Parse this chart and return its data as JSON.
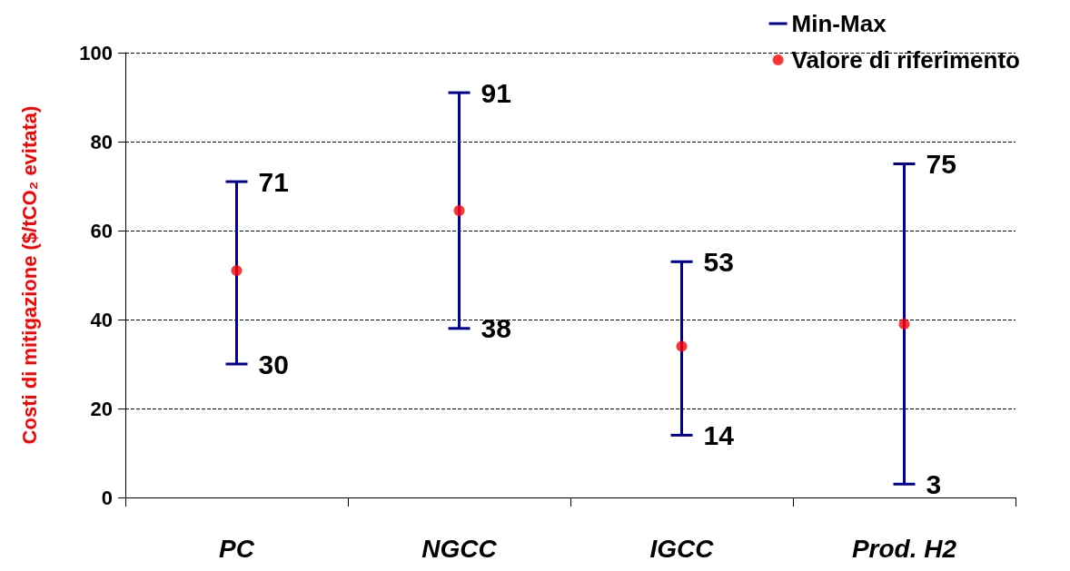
{
  "chart_data": {
    "type": "scatter",
    "ylabel": "Costi di mitigazione ($/tCO₂ evitata)",
    "categories": [
      "PC",
      "NGCC",
      "IGCC",
      "Prod. H2"
    ],
    "series": [
      {
        "name": "Min-Max",
        "color": "#000099",
        "values": [
          null,
          null,
          null,
          null
        ]
      },
      {
        "name": "Valore di riferimento",
        "color": "#ff0000",
        "values": [
          51,
          64.5,
          34,
          39
        ],
        "errors": [
          [
            30,
            71
          ],
          [
            38,
            91
          ],
          [
            14,
            53
          ],
          [
            3,
            75
          ]
        ]
      }
    ],
    "ylim": [
      0,
      100
    ],
    "yticks": [
      0,
      20,
      40,
      60,
      80,
      100
    ],
    "grid": "y",
    "legend": "top right",
    "marker": "circle",
    "annotations": [
      {
        "text": "71",
        "x": "PC",
        "y": 71
      },
      {
        "text": "30",
        "x": "PC",
        "y": 30
      },
      {
        "text": "91",
        "x": "NGCC",
        "y": 91
      },
      {
        "text": "38",
        "x": "NGCC",
        "y": 38
      },
      {
        "text": "53",
        "x": "IGCC",
        "y": 53
      },
      {
        "text": "14",
        "x": "IGCC",
        "y": 14
      },
      {
        "text": "75",
        "x": "Prod. H2",
        "y": 75
      },
      {
        "text": "3",
        "x": "Prod. H2",
        "y": 3
      }
    ]
  }
}
